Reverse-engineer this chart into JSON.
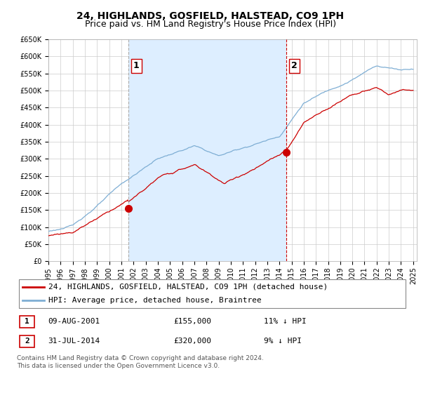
{
  "title": "24, HIGHLANDS, GOSFIELD, HALSTEAD, CO9 1PH",
  "subtitle": "Price paid vs. HM Land Registry's House Price Index (HPI)",
  "ylim": [
    0,
    650000
  ],
  "yticks": [
    0,
    50000,
    100000,
    150000,
    200000,
    250000,
    300000,
    350000,
    400000,
    450000,
    500000,
    550000,
    600000,
    650000
  ],
  "sale1_date": 2001.58,
  "sale1_price": 155000,
  "sale1_label": "1",
  "sale2_date": 2014.58,
  "sale2_price": 320000,
  "sale2_label": "2",
  "red_line_color": "#cc0000",
  "blue_line_color": "#7eaed4",
  "shaded_fill_color": "#ddeeff",
  "vline1_color": "#aaaaaa",
  "vline2_color": "#cc0000",
  "grid_color": "#cccccc",
  "background_color": "#ffffff",
  "legend_entry1": "24, HIGHLANDS, GOSFIELD, HALSTEAD, CO9 1PH (detached house)",
  "legend_entry2": "HPI: Average price, detached house, Braintree",
  "table_row1": [
    "1",
    "09-AUG-2001",
    "£155,000",
    "11% ↓ HPI"
  ],
  "table_row2": [
    "2",
    "31-JUL-2014",
    "£320,000",
    "9% ↓ HPI"
  ],
  "footnote": "Contains HM Land Registry data © Crown copyright and database right 2024.\nThis data is licensed under the Open Government Licence v3.0.",
  "title_fontsize": 10,
  "subtitle_fontsize": 9,
  "tick_fontsize": 7,
  "legend_fontsize": 8,
  "table_fontsize": 8,
  "footnote_fontsize": 6.5
}
